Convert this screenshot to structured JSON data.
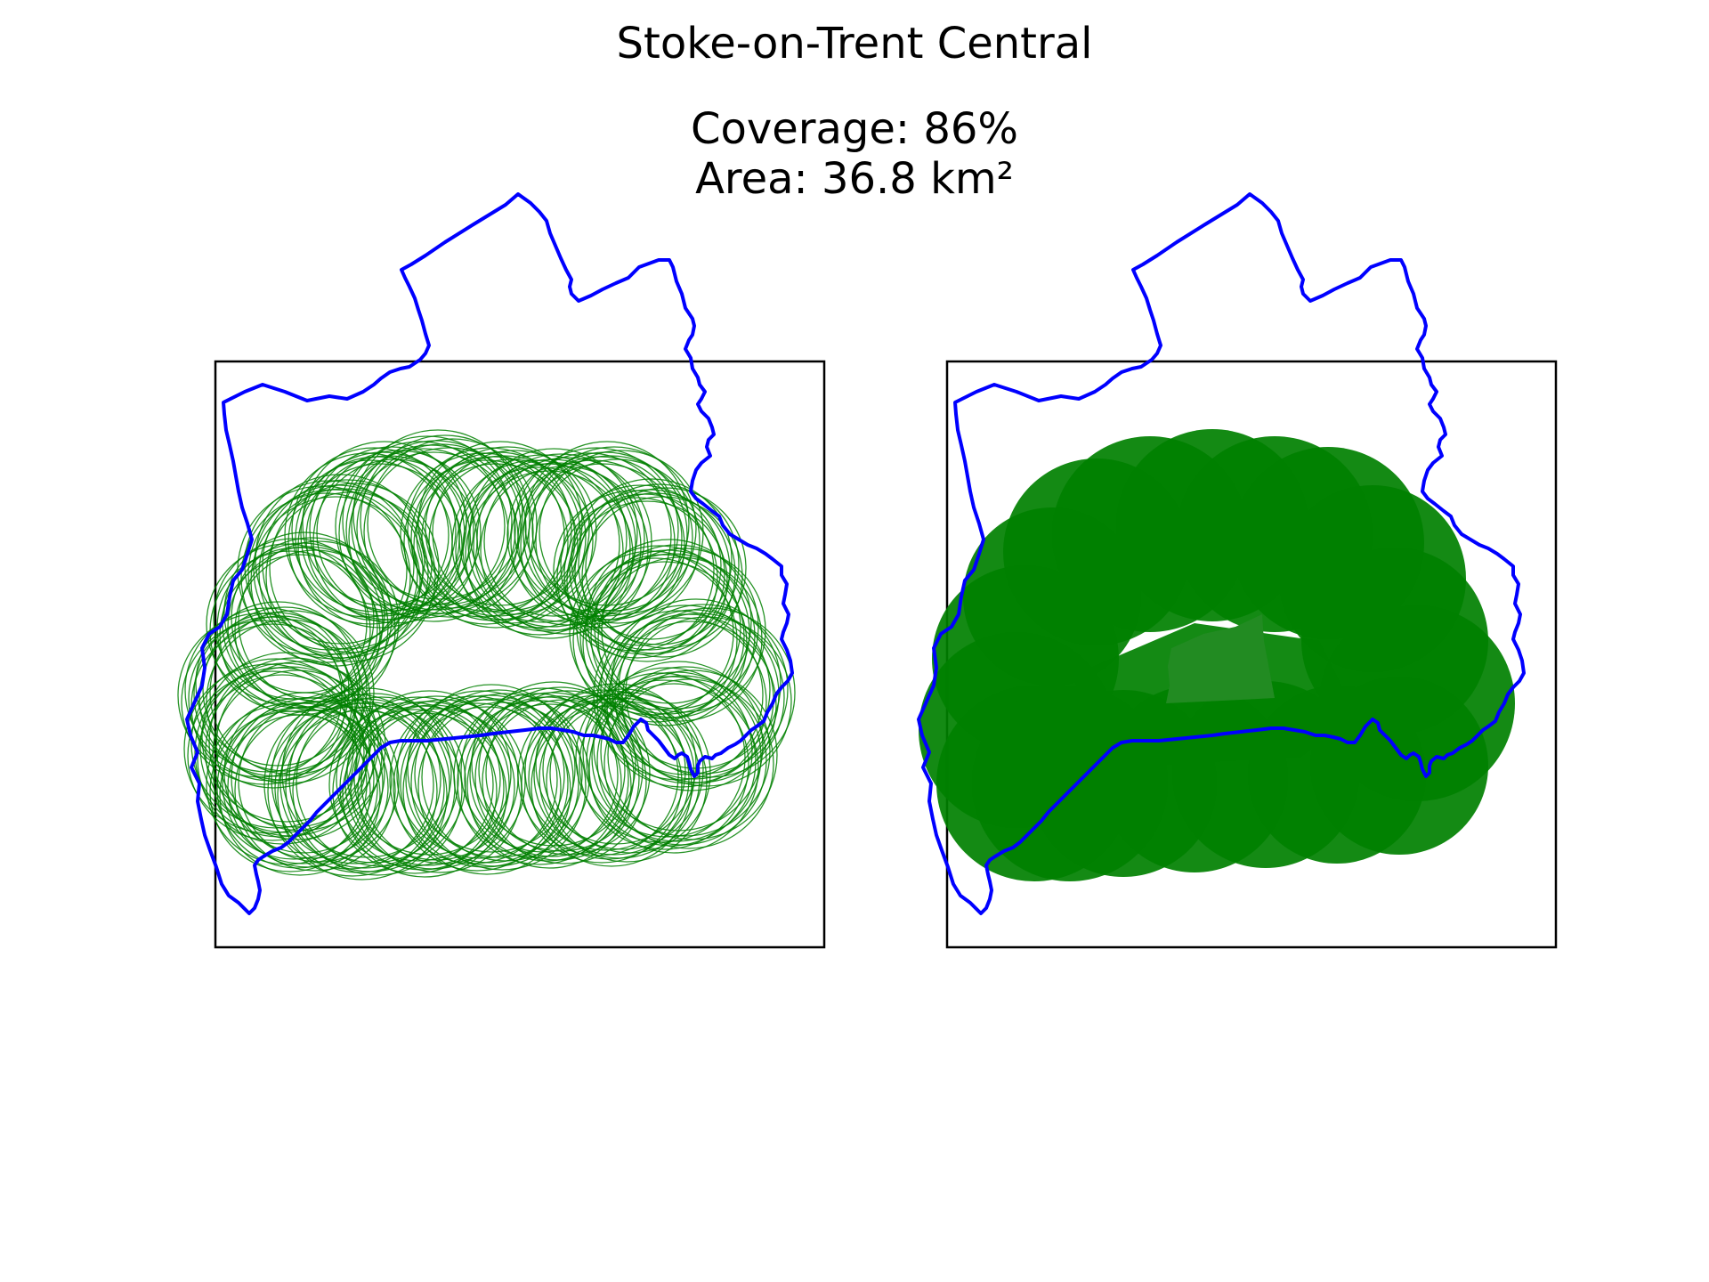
{
  "figure": {
    "title": "Stoke-on-Trent Central",
    "coverage_label": "Coverage: 86%",
    "area_label": "Area: 36.8 km²"
  },
  "colors": {
    "boundary": "#0000ff",
    "coverage_fill": "#008000",
    "uncovered_gap": "#228b22",
    "panel_frame": "#000000",
    "background": "#ffffff"
  },
  "chart_data": {
    "type": "map",
    "coverage_percent": 86,
    "area_km2": 36.8,
    "panels": [
      {
        "name": "left",
        "style": "circle-outlines"
      },
      {
        "name": "right",
        "style": "filled-union"
      }
    ]
  }
}
